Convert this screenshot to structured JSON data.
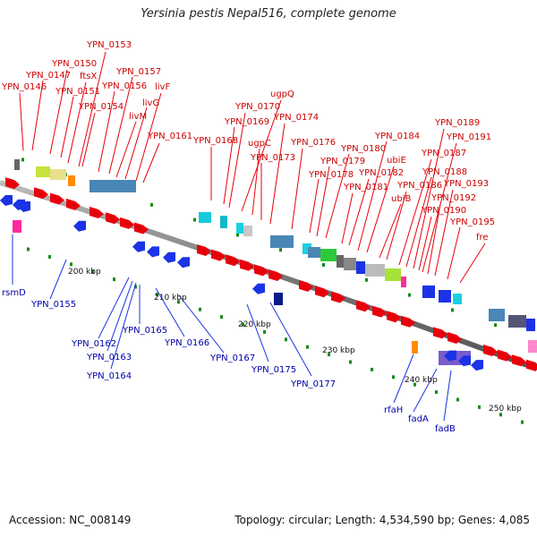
{
  "title": "Yersinia pestis Nepal516, complete genome",
  "footer": {
    "accession": "Accession: NC_008149",
    "stats": "Topology: circular; Length: 4,534,590 bp; Genes: 4,085"
  },
  "colors": {
    "forward_gene": "#e8000b",
    "reverse_gene": "#1a33e6",
    "forward_label": "#cc0000",
    "reverse_label": "#0000aa",
    "backbone": "#888888",
    "tick": "#1a8a1a"
  },
  "kbp_labels": [
    "200 kbp",
    "210 kbp",
    "220 kbp",
    "230 kbp",
    "240 kbp",
    "250 kbp"
  ],
  "forward_labels": [
    "YPN_0146",
    "YPN_0147",
    "YPN_0150",
    "YPN_0151",
    "ftsX",
    "YPN_0153",
    "YPN_0154",
    "YPN_0156",
    "YPN_0157",
    "livG",
    "livM",
    "livF",
    "YPN_0161",
    "YPN_0168",
    "YPN_0169",
    "YPN_0170",
    "ugpQ",
    "ugpC",
    "YPN_0173",
    "YPN_0174",
    "YPN_0176",
    "YPN_0178",
    "YPN_0179",
    "YPN_0180",
    "YPN_0181",
    "YPN_0182",
    "YPN_0184",
    "ubiE",
    "ubiB",
    "YPN_0186",
    "YPN_0187",
    "YPN_0188",
    "YPN_0189",
    "YPN_0190",
    "YPN_0191",
    "YPN_0192",
    "YPN_0193",
    "YPN_0195",
    "fre"
  ],
  "reverse_labels": [
    "rsmD",
    "YPN_0155",
    "YPN_0162",
    "YPN_0163",
    "YPN_0164",
    "YPN_0165",
    "YPN_0166",
    "YPN_0167",
    "YPN_0175",
    "YPN_0177",
    "rfaH",
    "fadA",
    "fadB"
  ]
}
